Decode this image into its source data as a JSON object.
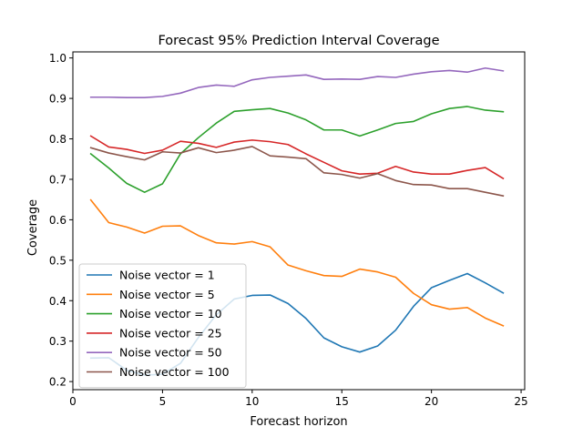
{
  "chart_data": {
    "type": "line",
    "title": "Forecast 95% Prediction Interval Coverage",
    "xlabel": "Forecast horizon",
    "ylabel": "Coverage",
    "xlim": [
      0,
      25.2
    ],
    "ylim": [
      0.18,
      1.015
    ],
    "xticks": [
      0,
      5,
      10,
      15,
      20,
      25
    ],
    "yticks": [
      0.2,
      0.3,
      0.4,
      0.5,
      0.6,
      0.7,
      0.8,
      0.9,
      1.0
    ],
    "xtick_labels": [
      "0",
      "5",
      "10",
      "15",
      "20",
      "25"
    ],
    "ytick_labels": [
      "0.2",
      "0.3",
      "0.4",
      "0.5",
      "0.6",
      "0.7",
      "0.8",
      "0.9",
      "1.0"
    ],
    "grid": false,
    "legend_position": "lower-left",
    "x": [
      1,
      2,
      3,
      4,
      5,
      6,
      7,
      8,
      9,
      10,
      11,
      12,
      13,
      14,
      15,
      16,
      17,
      18,
      19,
      20,
      21,
      22,
      23,
      24
    ],
    "series": [
      {
        "name": "Noise vector = 1",
        "color": "#1f77b4",
        "values": [
          0.258,
          0.259,
          0.228,
          0.216,
          0.218,
          0.245,
          0.309,
          0.365,
          0.404,
          0.413,
          0.414,
          0.393,
          0.356,
          0.308,
          0.286,
          0.273,
          0.288,
          0.327,
          0.386,
          0.432,
          0.45,
          0.467,
          0.444,
          0.419
        ]
      },
      {
        "name": "Noise vector = 5",
        "color": "#ff7f0e",
        "values": [
          0.649,
          0.593,
          0.582,
          0.567,
          0.584,
          0.585,
          0.561,
          0.543,
          0.54,
          0.546,
          0.533,
          0.488,
          0.474,
          0.462,
          0.46,
          0.478,
          0.471,
          0.458,
          0.418,
          0.39,
          0.379,
          0.383,
          0.357,
          0.338
        ]
      },
      {
        "name": "Noise vector = 10",
        "color": "#2ca02c",
        "values": [
          0.763,
          0.728,
          0.69,
          0.668,
          0.689,
          0.763,
          0.803,
          0.839,
          0.868,
          0.872,
          0.875,
          0.864,
          0.847,
          0.822,
          0.822,
          0.807,
          0.822,
          0.838,
          0.843,
          0.862,
          0.875,
          0.88,
          0.871,
          0.867
        ]
      },
      {
        "name": "Noise vector = 25",
        "color": "#d62728",
        "values": [
          0.807,
          0.78,
          0.774,
          0.764,
          0.772,
          0.794,
          0.789,
          0.779,
          0.792,
          0.797,
          0.793,
          0.786,
          0.763,
          0.742,
          0.721,
          0.713,
          0.715,
          0.732,
          0.718,
          0.713,
          0.713,
          0.722,
          0.729,
          0.702
        ]
      },
      {
        "name": "Noise vector = 50",
        "color": "#9467bd",
        "values": [
          0.903,
          0.903,
          0.902,
          0.902,
          0.905,
          0.913,
          0.927,
          0.933,
          0.93,
          0.946,
          0.952,
          0.955,
          0.958,
          0.947,
          0.948,
          0.947,
          0.954,
          0.952,
          0.96,
          0.966,
          0.969,
          0.965,
          0.975,
          0.968
        ]
      },
      {
        "name": "Noise vector = 100",
        "color": "#8c564b",
        "values": [
          0.778,
          0.765,
          0.756,
          0.748,
          0.768,
          0.765,
          0.778,
          0.766,
          0.772,
          0.781,
          0.758,
          0.755,
          0.751,
          0.716,
          0.712,
          0.703,
          0.714,
          0.697,
          0.687,
          0.686,
          0.677,
          0.677,
          0.668,
          0.659
        ]
      }
    ]
  }
}
